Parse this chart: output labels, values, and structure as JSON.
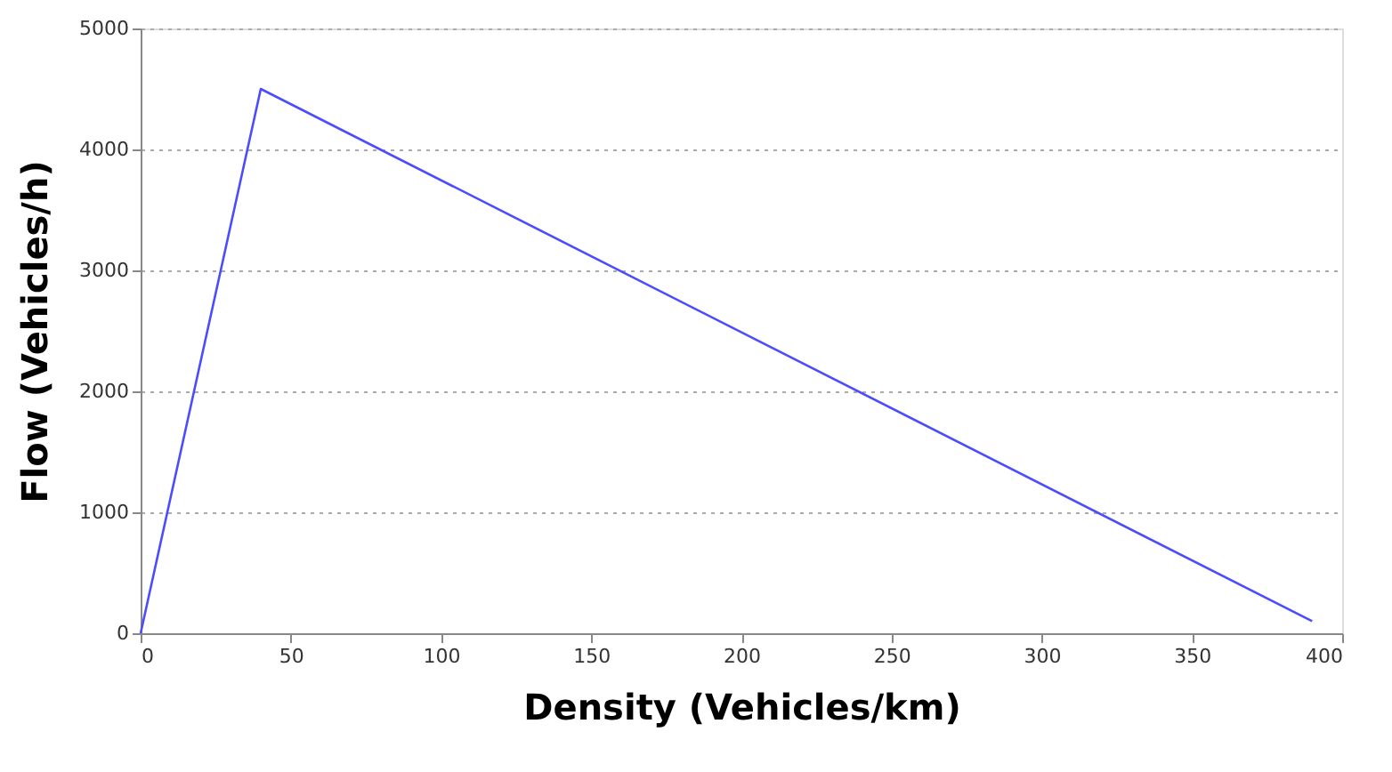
{
  "chart_data": {
    "type": "line",
    "xlabel": "Density (Vehicles/km)",
    "ylabel": "Flow (Vehicles/h)",
    "x": [
      0,
      40,
      390
    ],
    "series": [
      {
        "color": "#4c4cff",
        "values": [
          0,
          4500,
          100
        ]
      }
    ],
    "xlim": [
      0,
      400
    ],
    "xticks": [
      0,
      50,
      100,
      150,
      200,
      250,
      300,
      350,
      400
    ],
    "ylim": [
      0,
      5000
    ],
    "yticks": [
      0,
      1000,
      2000,
      3000,
      4000,
      5000
    ],
    "grid": "y",
    "line_style": "solid",
    "marker": "none"
  }
}
